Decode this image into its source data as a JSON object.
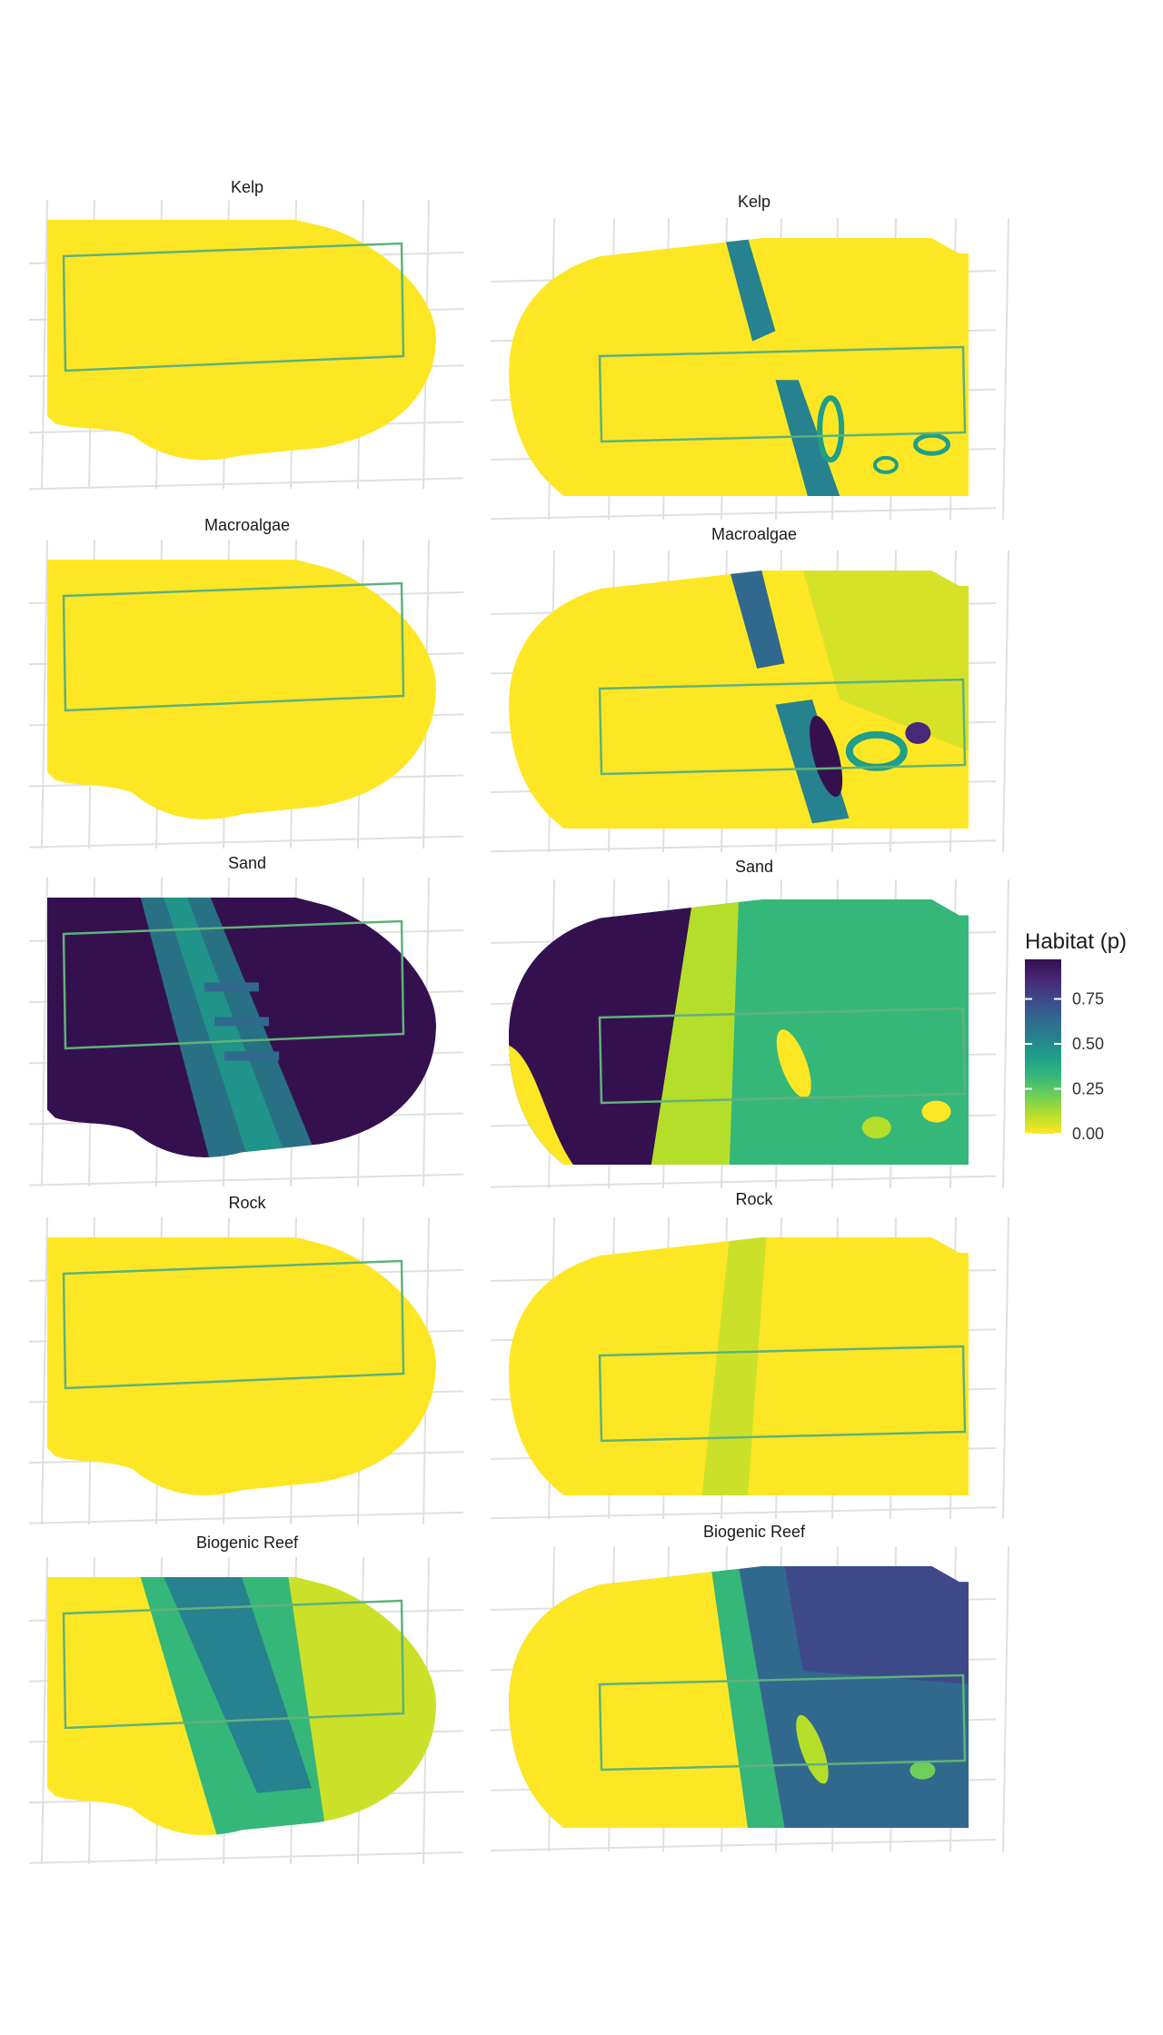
{
  "colors": {
    "viridis": [
      "#FDE725",
      "#B5DE2B",
      "#6ECE58",
      "#35B779",
      "#1F9E89",
      "#26828E",
      "#31688E",
      "#3E4989",
      "#482878",
      "#440154"
    ],
    "yellow": "#FDE725",
    "deep": "#35104F",
    "rect_stroke": "#5FB27A",
    "grid": "#E0E0E0"
  },
  "legend": {
    "title": "Habitat (p)",
    "ticks": [
      "0.75",
      "0.50",
      "0.25",
      "0.00"
    ],
    "tick_values": [
      0.75,
      0.5,
      0.25,
      0.0
    ]
  },
  "panels": [
    {
      "title": "Kelp",
      "pattern": "none"
    },
    {
      "title": "Kelp",
      "pattern": "kelp_patches"
    },
    {
      "title": "Macroalgae",
      "pattern": "none"
    },
    {
      "title": "Macroalgae",
      "pattern": "macro_bands"
    },
    {
      "title": "Sand",
      "pattern": "sand_left_high"
    },
    {
      "title": "Sand",
      "pattern": "sand_split"
    },
    {
      "title": "Rock",
      "pattern": "none"
    },
    {
      "title": "Rock",
      "pattern": "rock_speckle"
    },
    {
      "title": "Biogenic Reef",
      "pattern": "reef_band"
    },
    {
      "title": "Biogenic Reef",
      "pattern": "reef_right"
    }
  ]
}
